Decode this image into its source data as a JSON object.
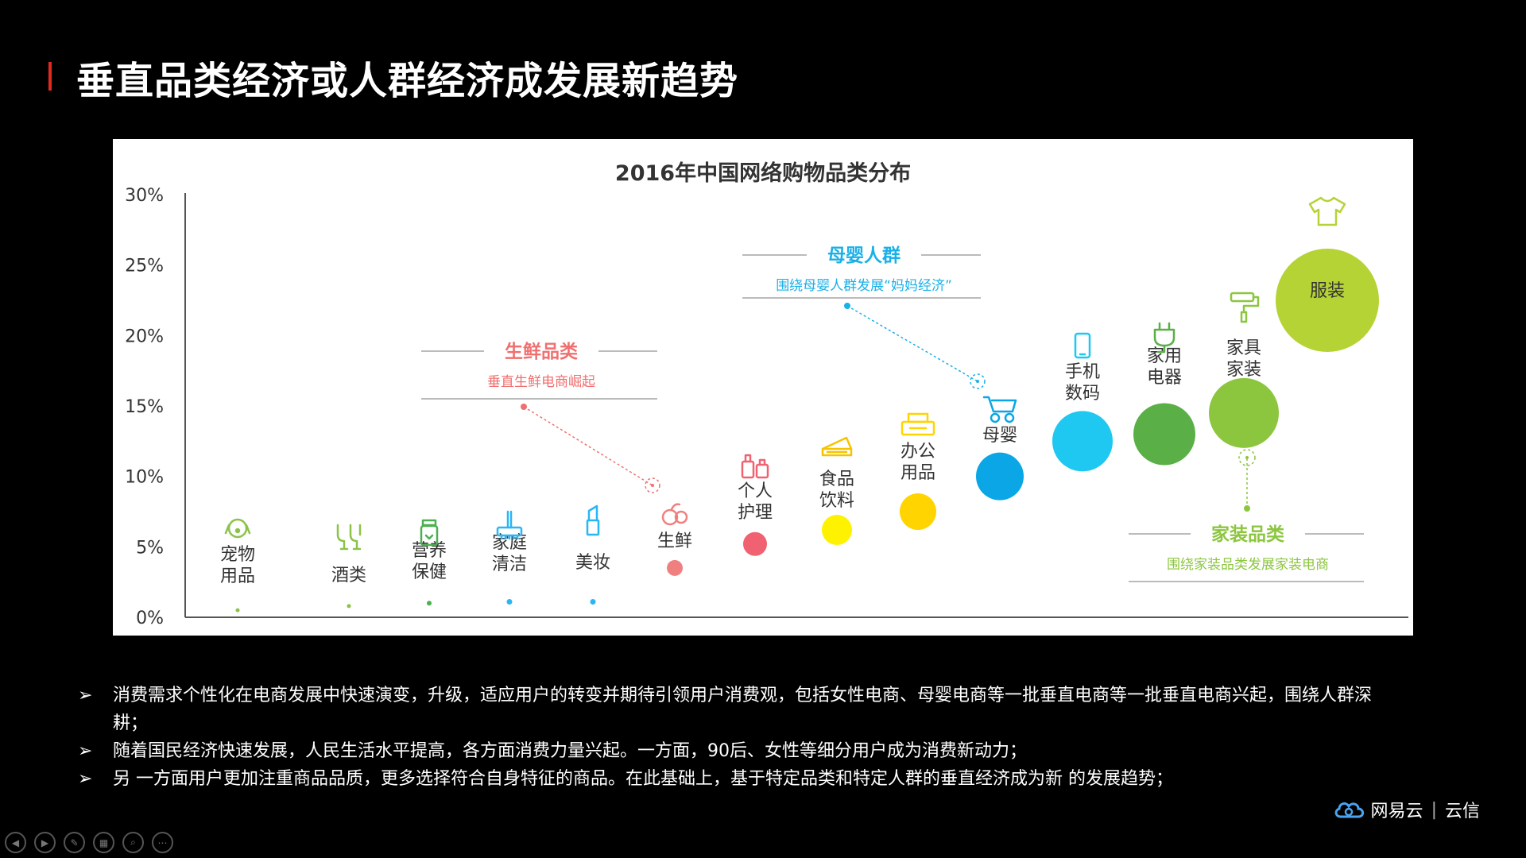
{
  "slide": {
    "title": "垂直品类经济或人群经济成发展新趋势"
  },
  "chart_data": {
    "type": "scatter",
    "title": "2016年中国网络购物品类分布",
    "yaxis_ticks": [
      "0%",
      "5%",
      "10%",
      "15%",
      "20%",
      "25%",
      "30%"
    ],
    "ylim": [
      0,
      30
    ],
    "points": [
      {
        "label": "宠物\n用品",
        "y": 0.5,
        "icon": "dog-icon",
        "color": "#8bc34a"
      },
      {
        "label": "酒类",
        "y": 0.8,
        "icon": "wine-glass-icon",
        "color": "#8bc34a"
      },
      {
        "label": "营养\n保健",
        "y": 1.0,
        "icon": "supplement-jar-icon",
        "color": "#4caf50"
      },
      {
        "label": "家庭\n清洁",
        "y": 1.1,
        "icon": "cleaning-brush-icon",
        "color": "#29b6f6"
      },
      {
        "label": "美妆",
        "y": 1.1,
        "icon": "lipstick-icon",
        "color": "#29b6f6"
      },
      {
        "label": "生鲜",
        "y": 3.5,
        "icon": "fresh-fruit-icon",
        "color": "#f08080"
      },
      {
        "label": "个人\n护理",
        "y": 5.2,
        "icon": "personal-care-icon",
        "color": "#f06272"
      },
      {
        "label": "食品\n饮料",
        "y": 6.2,
        "icon": "cake-icon",
        "color": "#fff200"
      },
      {
        "label": "办公\n用品",
        "y": 7.5,
        "icon": "printer-icon",
        "color": "#ffd400"
      },
      {
        "label": "母婴",
        "y": 10.0,
        "icon": "baby-stroller-icon",
        "color": "#0aa6e6"
      },
      {
        "label": "手机\n数码",
        "y": 12.5,
        "icon": "phone-icon",
        "color": "#1ec8f0"
      },
      {
        "label": "家用\n电器",
        "y": 13.0,
        "icon": "plug-icon",
        "color": "#5ab046"
      },
      {
        "label": "家具\n家装",
        "y": 14.5,
        "icon": "paint-roller-icon",
        "color": "#8cc63f"
      },
      {
        "label": "服装",
        "y": 22.5,
        "icon": "tshirt-icon",
        "color": "#b5d334"
      }
    ],
    "annotations": [
      {
        "title": "生鲜品类",
        "subtitle": "垂直生鲜电商崛起",
        "color": "#f07070"
      },
      {
        "title": "母婴人群",
        "subtitle": "围绕母婴人群发展“妈妈经济”",
        "color": "#1ab0e8"
      },
      {
        "title": "家装品类",
        "subtitle": "围绕家装品类发展家装电商",
        "color": "#8cc63f"
      }
    ]
  },
  "bullets": [
    {
      "arrow": "➢",
      "text": "消费需求个性化在电商发展中快速演变，升级，适应用户的转变并期待引领用户消费观，包括女性电商、母婴电商等一批垂直电商等一批垂直电商兴起，围绕人群深耕；"
    },
    {
      "arrow": "➢",
      "text": "随着国民经济快速发展，人民生活水平提高，各方面消费力量兴起。一方面，90后、女性等细分用户成为消费新动力；"
    },
    {
      "arrow": "➢",
      "text": "另 一方面用户更加注重商品品质，更多选择符合自身特征的商品。在此基础上，基于特定品类和特定人群的垂直经济成为新 的发展趋势；"
    }
  ],
  "brand": {
    "name": "网易云",
    "sep": "|",
    "product": "云信",
    "icon": "cloud-logo-icon"
  },
  "controls": [
    {
      "name": "prev-slide-button",
      "glyph": "◀"
    },
    {
      "name": "next-slide-button",
      "glyph": "▶"
    },
    {
      "name": "pen-tool-button",
      "glyph": "✎"
    },
    {
      "name": "slide-overview-button",
      "glyph": "▦"
    },
    {
      "name": "zoom-button",
      "glyph": "⌕"
    },
    {
      "name": "more-options-button",
      "glyph": "⋯"
    }
  ]
}
